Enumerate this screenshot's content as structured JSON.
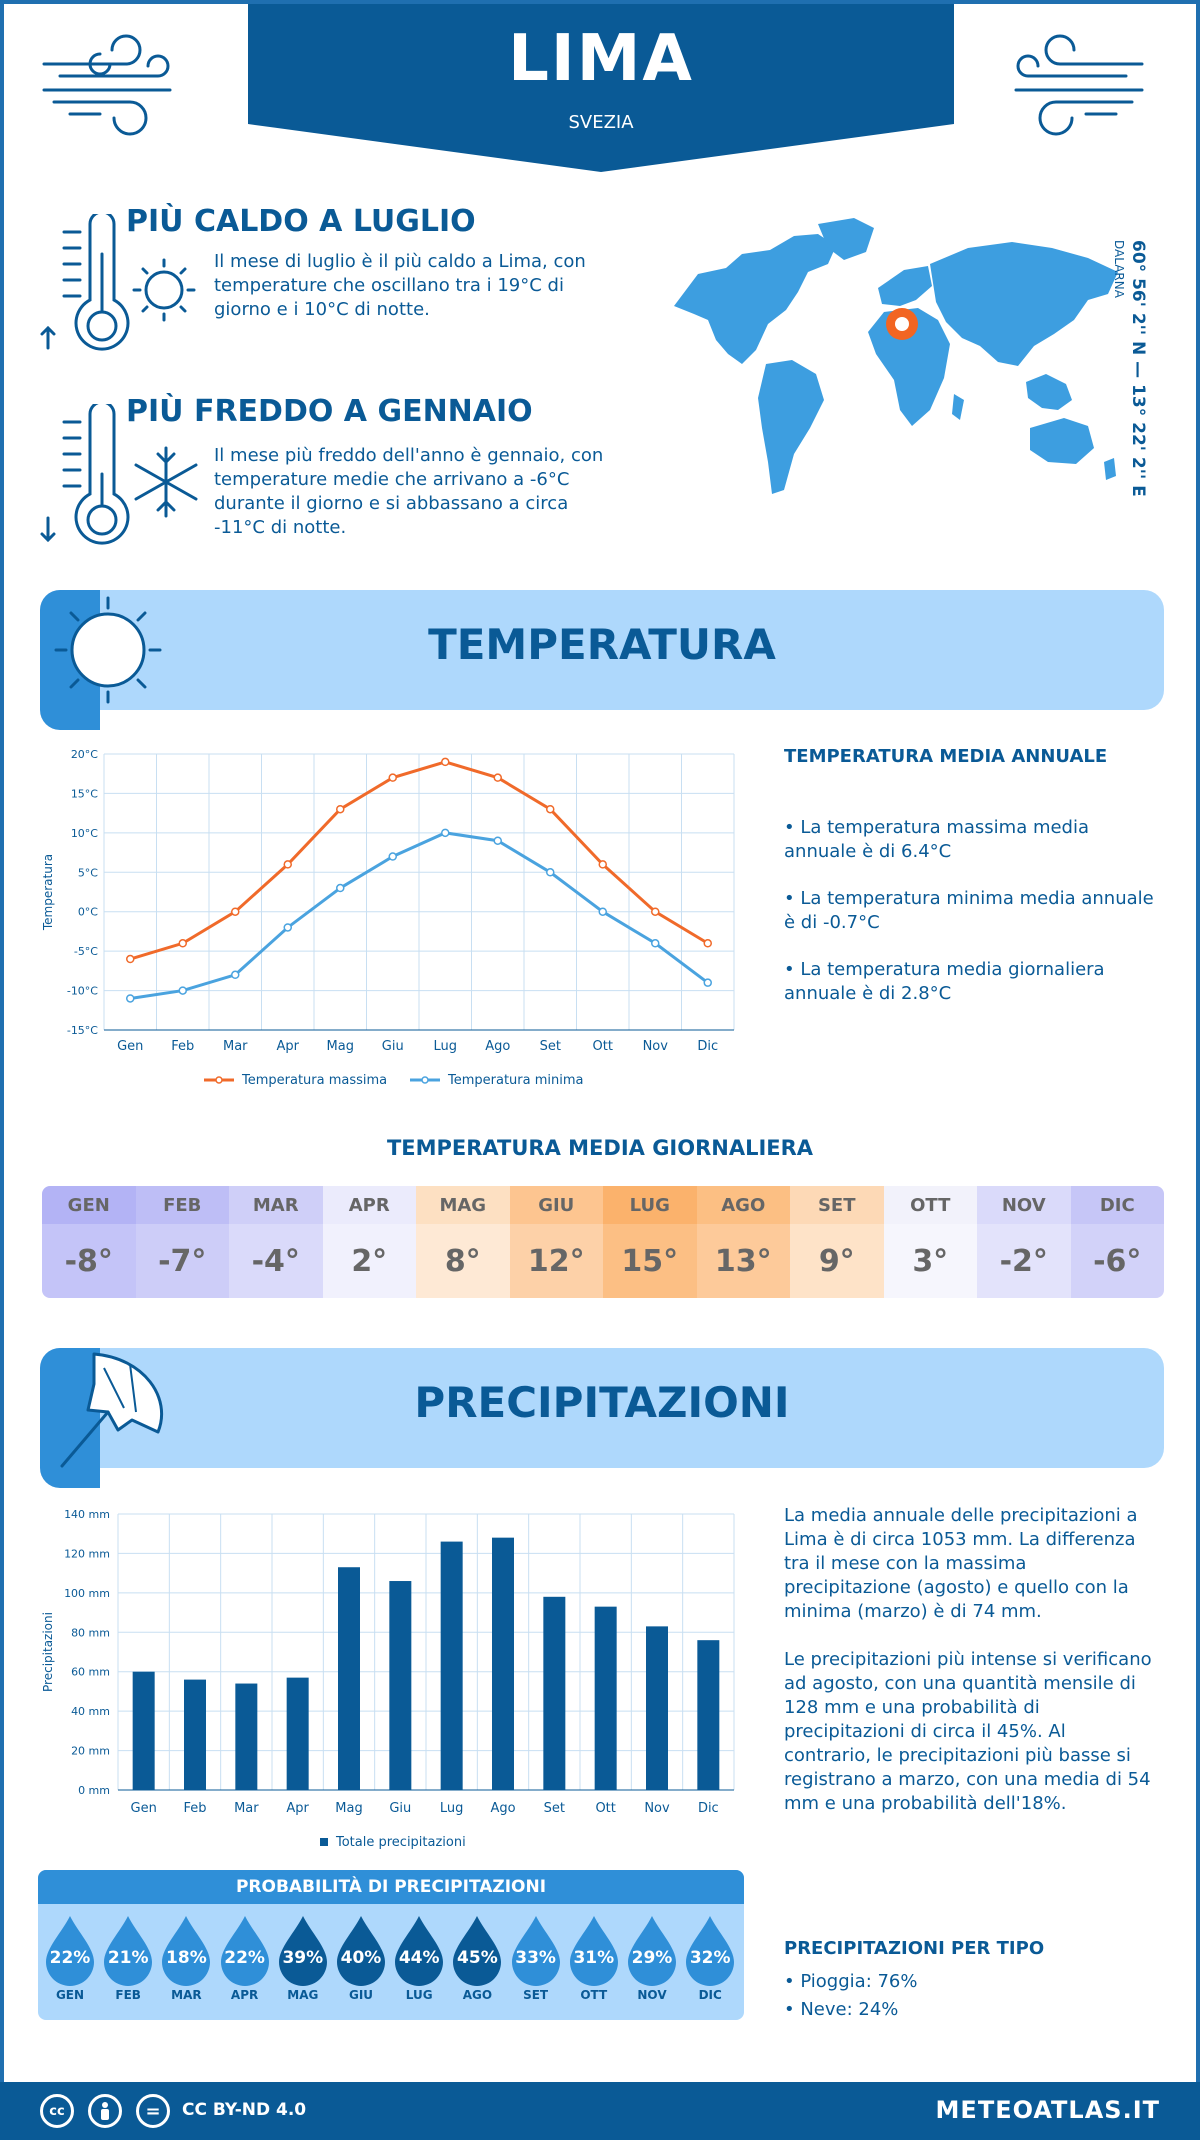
{
  "header": {
    "city": "LIMA",
    "country": "SVEZIA"
  },
  "warmest": {
    "title": "PIÙ CALDO A LUGLIO",
    "text": "Il mese di luglio è il più caldo a Lima, con temperature che oscillano tra i 19°C di giorno e i 10°C di notte."
  },
  "coldest": {
    "title": "PIÙ FREDDO A GENNAIO",
    "text": "Il mese più freddo dell'anno è gennaio, con temperature medie che arrivano a -6°C durante il giorno e si abbassano a circa -11°C di notte."
  },
  "location": {
    "coords": "60° 56' 2'' N — 13° 22' 2'' E",
    "region": "DALARNA"
  },
  "temperature_section": {
    "title": "TEMPERATURA"
  },
  "temp_annual": {
    "title": "TEMPERATURA MEDIA ANNUALE",
    "max": "• La temperatura massima media annuale è di 6.4°C",
    "min": "• La temperatura minima media annuale è di -0.7°C",
    "avg": "• La temperatura media giornaliera annuale è di 2.8°C"
  },
  "daily_table": {
    "title": "TEMPERATURA MEDIA GIORNALIERA",
    "months": [
      {
        "name": "GEN",
        "value": "-8°",
        "head": "#b3b3f5",
        "body": "#c4c4f8"
      },
      {
        "name": "FEB",
        "value": "-7°",
        "head": "#bebef6",
        "body": "#cdcdf8"
      },
      {
        "name": "MAR",
        "value": "-4°",
        "head": "#cfcff8",
        "body": "#dadafa"
      },
      {
        "name": "APR",
        "value": "2°",
        "head": "#ebebfc",
        "body": "#f1f1fd"
      },
      {
        "name": "MAG",
        "value": "8°",
        "head": "#fde0c2",
        "body": "#fee9d5"
      },
      {
        "name": "GIU",
        "value": "12°",
        "head": "#fdc590",
        "body": "#fdd1a8"
      },
      {
        "name": "LUG",
        "value": "15°",
        "head": "#fbb26c",
        "body": "#fcbf84"
      },
      {
        "name": "AGO",
        "value": "13°",
        "head": "#fcbf83",
        "body": "#fdca9a"
      },
      {
        "name": "SET",
        "value": "9°",
        "head": "#fdd9b6",
        "body": "#fee3c8"
      },
      {
        "name": "OTT",
        "value": "3°",
        "head": "#f2f2fb",
        "body": "#f6f6fd"
      },
      {
        "name": "NOV",
        "value": "-2°",
        "head": "#dadafa",
        "body": "#e3e3fb"
      },
      {
        "name": "DIC",
        "value": "-6°",
        "head": "#c6c6f7",
        "body": "#d2d2f9"
      }
    ]
  },
  "precip_section": {
    "title": "PRECIPITAZIONI"
  },
  "precip_text": {
    "p1": "La media annuale delle precipitazioni a Lima è di circa 1053 mm. La differenza tra il mese con la massima precipitazione (agosto) e quello con la minima (marzo) è di 74 mm.",
    "p2": "Le precipitazioni più intense si verificano ad agosto, con una quantità mensile di 128 mm e una probabilità di precipitazioni di circa il 45%. Al contrario, le precipitazioni più basse si registrano a marzo, con una media di 54 mm e una probabilità dell'18%."
  },
  "probability": {
    "title": "PROBABILITÀ DI PRECIPITAZIONI",
    "items": [
      {
        "month": "GEN",
        "value": "22%"
      },
      {
        "month": "FEB",
        "value": "21%"
      },
      {
        "month": "MAR",
        "value": "18%"
      },
      {
        "month": "APR",
        "value": "22%"
      },
      {
        "month": "MAG",
        "value": "39%"
      },
      {
        "month": "GIU",
        "value": "40%"
      },
      {
        "month": "LUG",
        "value": "44%"
      },
      {
        "month": "AGO",
        "value": "45%"
      },
      {
        "month": "SET",
        "value": "33%"
      },
      {
        "month": "OTT",
        "value": "31%"
      },
      {
        "month": "NOV",
        "value": "29%"
      },
      {
        "month": "DIC",
        "value": "32%"
      }
    ],
    "light_color": "#2f8fd8",
    "dark_color": "#0a5a96"
  },
  "precip_type": {
    "title": "PRECIPITAZIONI PER TIPO",
    "rain": "• Pioggia: 76%",
    "snow": "• Neve: 24%"
  },
  "footer": {
    "license": "CC BY-ND 4.0",
    "site": "METEOATLAS.IT",
    "cc1": "cc",
    "cc3": "="
  },
  "colors": {
    "primary": "#0a5a96",
    "accent": "#2f8fd8",
    "band": "#aed8fc",
    "max_line": "#f06a2a",
    "min_line": "#4aa3df"
  },
  "chart_data": [
    {
      "type": "line",
      "categories": [
        "Gen",
        "Feb",
        "Mar",
        "Apr",
        "Mag",
        "Giu",
        "Lug",
        "Ago",
        "Set",
        "Ott",
        "Nov",
        "Dic"
      ],
      "series": [
        {
          "name": "Temperatura massima",
          "values": [
            -6,
            -4,
            0,
            6,
            13,
            17,
            19,
            17,
            13,
            6,
            0,
            -4
          ]
        },
        {
          "name": "Temperatura minima",
          "values": [
            -11,
            -10,
            -8,
            -2,
            3,
            7,
            10,
            9,
            5,
            0,
            -4,
            -9
          ]
        }
      ],
      "ylabel": "Temperatura",
      "ylim": [
        -15,
        20
      ],
      "yticks": [
        "-15°C",
        "-10°C",
        "-5°C",
        "0°C",
        "5°C",
        "10°C",
        "15°C",
        "20°C"
      ],
      "grid": true,
      "legend": "bottom"
    },
    {
      "type": "bar",
      "categories": [
        "Gen",
        "Feb",
        "Mar",
        "Apr",
        "Mag",
        "Giu",
        "Lug",
        "Ago",
        "Set",
        "Ott",
        "Nov",
        "Dic"
      ],
      "series": [
        {
          "name": "Totale precipitazioni",
          "values": [
            60,
            56,
            54,
            57,
            113,
            106,
            126,
            128,
            98,
            93,
            83,
            76
          ]
        }
      ],
      "ylabel": "Precipitazioni",
      "ylim": [
        0,
        140
      ],
      "yticks": [
        "0 mm",
        "20 mm",
        "40 mm",
        "60 mm",
        "80 mm",
        "100 mm",
        "120 mm",
        "140 mm"
      ],
      "grid": true,
      "legend": "bottom"
    }
  ]
}
